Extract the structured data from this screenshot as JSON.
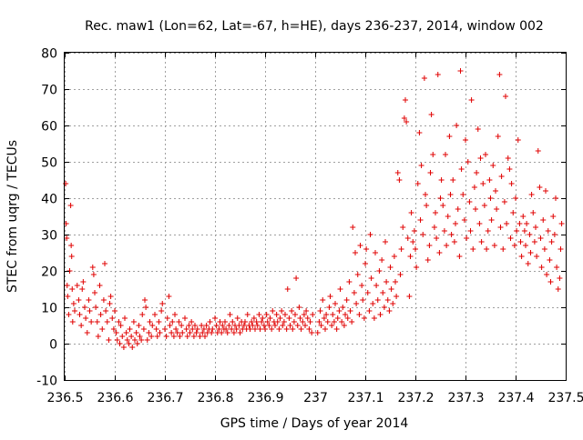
{
  "chart_data": {
    "type": "scatter",
    "title": "Rec. maw1 (Lon=62, Lat=-67, h=HE), days 236-237, 2014, window 002",
    "xlabel": "GPS time / Days of year 2014",
    "ylabel": "STEC from uqrg / TECUs",
    "xlim": [
      236.5,
      237.5
    ],
    "ylim": [
      -10,
      80
    ],
    "xticks": [
      "236.5",
      "236.6",
      "236.7",
      "236.8",
      "236.9",
      "237",
      "237.1",
      "237.2",
      "237.3",
      "237.4",
      "237.5"
    ],
    "yticks": [
      "-10",
      "0",
      "10",
      "20",
      "30",
      "40",
      "50",
      "60",
      "70",
      "80"
    ],
    "grid": true,
    "marker": "+",
    "color": "#e00000",
    "points": [
      [
        236.502,
        44
      ],
      [
        236.503,
        33
      ],
      [
        236.504,
        29
      ],
      [
        236.505,
        16
      ],
      [
        236.506,
        13
      ],
      [
        236.508,
        8
      ],
      [
        236.51,
        20
      ],
      [
        236.512,
        38
      ],
      [
        236.513,
        27
      ],
      [
        236.514,
        24
      ],
      [
        236.515,
        15
      ],
      [
        236.516,
        6
      ],
      [
        236.518,
        11
      ],
      [
        236.52,
        9
      ],
      [
        236.525,
        16
      ],
      [
        236.528,
        12
      ],
      [
        236.53,
        8
      ],
      [
        236.533,
        5
      ],
      [
        236.535,
        15
      ],
      [
        236.537,
        17
      ],
      [
        236.54,
        10
      ],
      [
        236.542,
        7
      ],
      [
        236.545,
        3
      ],
      [
        236.548,
        12
      ],
      [
        236.55,
        9
      ],
      [
        236.553,
        6
      ],
      [
        236.556,
        21
      ],
      [
        236.558,
        19
      ],
      [
        236.56,
        14
      ],
      [
        236.562,
        10
      ],
      [
        236.565,
        6
      ],
      [
        236.567,
        2
      ],
      [
        236.57,
        16
      ],
      [
        236.572,
        8
      ],
      [
        236.575,
        4
      ],
      [
        236.578,
        12
      ],
      [
        236.58,
        22
      ],
      [
        236.582,
        9
      ],
      [
        236.585,
        6
      ],
      [
        236.588,
        1
      ],
      [
        236.59,
        11
      ],
      [
        236.592,
        13
      ],
      [
        236.595,
        7
      ],
      [
        236.598,
        4
      ],
      [
        236.6,
        9
      ],
      [
        236.603,
        3
      ],
      [
        236.605,
        1
      ],
      [
        236.608,
        6
      ],
      [
        236.61,
        0
      ],
      [
        236.612,
        5
      ],
      [
        236.615,
        2
      ],
      [
        236.618,
        -1
      ],
      [
        236.62,
        7
      ],
      [
        236.623,
        3
      ],
      [
        236.625,
        1
      ],
      [
        236.628,
        0
      ],
      [
        236.63,
        4
      ],
      [
        236.633,
        2
      ],
      [
        236.635,
        -1
      ],
      [
        236.638,
        6
      ],
      [
        236.64,
        1
      ],
      [
        236.643,
        3
      ],
      [
        236.645,
        0
      ],
      [
        236.648,
        5
      ],
      [
        236.65,
        2
      ],
      [
        236.653,
        1
      ],
      [
        236.655,
        8
      ],
      [
        236.658,
        4
      ],
      [
        236.66,
        12
      ],
      [
        236.662,
        10
      ],
      [
        236.665,
        1
      ],
      [
        236.668,
        3
      ],
      [
        236.67,
        6
      ],
      [
        236.673,
        2
      ],
      [
        236.675,
        5
      ],
      [
        236.68,
        8
      ],
      [
        236.683,
        4
      ],
      [
        236.685,
        2
      ],
      [
        236.688,
        6
      ],
      [
        236.69,
        3
      ],
      [
        236.693,
        9
      ],
      [
        236.695,
        11
      ],
      [
        236.7,
        4
      ],
      [
        236.703,
        2
      ],
      [
        236.705,
        7
      ],
      [
        236.708,
        13
      ],
      [
        236.71,
        5
      ],
      [
        236.713,
        3
      ],
      [
        236.715,
        6
      ],
      [
        236.718,
        2
      ],
      [
        236.72,
        8
      ],
      [
        236.722,
        4
      ],
      [
        236.725,
        3
      ],
      [
        236.728,
        6
      ],
      [
        236.73,
        2
      ],
      [
        236.733,
        5
      ],
      [
        236.735,
        3
      ],
      [
        236.74,
        7
      ],
      [
        236.743,
        4
      ],
      [
        236.745,
        2
      ],
      [
        236.748,
        5
      ],
      [
        236.75,
        3
      ],
      [
        236.753,
        6
      ],
      [
        236.755,
        4
      ],
      [
        236.758,
        2
      ],
      [
        236.76,
        5
      ],
      [
        236.763,
        3
      ],
      [
        236.765,
        4
      ],
      [
        236.77,
        2
      ],
      [
        236.773,
        5
      ],
      [
        236.775,
        3
      ],
      [
        236.778,
        4
      ],
      [
        236.78,
        2
      ],
      [
        236.783,
        5
      ],
      [
        236.785,
        3
      ],
      [
        236.788,
        4
      ],
      [
        236.79,
        6
      ],
      [
        236.793,
        3
      ],
      [
        236.795,
        4
      ],
      [
        236.8,
        7
      ],
      [
        236.803,
        5
      ],
      [
        236.805,
        3
      ],
      [
        236.808,
        4
      ],
      [
        236.81,
        6
      ],
      [
        236.813,
        3
      ],
      [
        236.815,
        5
      ],
      [
        236.818,
        4
      ],
      [
        236.82,
        6
      ],
      [
        236.822,
        4
      ],
      [
        236.825,
        3
      ],
      [
        236.828,
        5
      ],
      [
        236.83,
        8
      ],
      [
        236.833,
        4
      ],
      [
        236.835,
        6
      ],
      [
        236.838,
        3
      ],
      [
        236.84,
        5
      ],
      [
        236.843,
        4
      ],
      [
        236.845,
        7
      ],
      [
        236.848,
        5
      ],
      [
        236.85,
        3
      ],
      [
        236.853,
        6
      ],
      [
        236.855,
        4
      ],
      [
        236.858,
        5
      ],
      [
        236.86,
        6
      ],
      [
        236.863,
        4
      ],
      [
        236.865,
        8
      ],
      [
        236.868,
        5
      ],
      [
        236.87,
        4
      ],
      [
        236.873,
        6
      ],
      [
        236.875,
        5
      ],
      [
        236.878,
        7
      ],
      [
        236.88,
        4
      ],
      [
        236.883,
        6
      ],
      [
        236.885,
        5
      ],
      [
        236.888,
        8
      ],
      [
        236.89,
        4
      ],
      [
        236.893,
        6
      ],
      [
        236.895,
        7
      ],
      [
        236.898,
        5
      ],
      [
        236.9,
        4
      ],
      [
        236.903,
        8
      ],
      [
        236.905,
        6
      ],
      [
        236.908,
        5
      ],
      [
        236.91,
        7
      ],
      [
        236.913,
        4
      ],
      [
        236.915,
        9
      ],
      [
        236.918,
        6
      ],
      [
        236.92,
        5
      ],
      [
        236.923,
        8
      ],
      [
        236.925,
        6
      ],
      [
        236.928,
        4
      ],
      [
        236.93,
        7
      ],
      [
        236.933,
        9
      ],
      [
        236.935,
        5
      ],
      [
        236.938,
        6
      ],
      [
        236.94,
        8
      ],
      [
        236.943,
        4
      ],
      [
        236.945,
        15
      ],
      [
        236.948,
        7
      ],
      [
        236.95,
        5
      ],
      [
        236.953,
        9
      ],
      [
        236.955,
        4
      ],
      [
        236.958,
        6
      ],
      [
        236.96,
        8
      ],
      [
        236.962,
        18
      ],
      [
        236.965,
        5
      ],
      [
        236.968,
        10
      ],
      [
        236.97,
        7
      ],
      [
        236.972,
        4
      ],
      [
        236.975,
        6
      ],
      [
        236.978,
        8
      ],
      [
        236.98,
        5
      ],
      [
        236.982,
        9
      ],
      [
        236.985,
        7
      ],
      [
        236.988,
        4
      ],
      [
        236.99,
        6
      ],
      [
        236.993,
        3
      ],
      [
        236.995,
        8
      ],
      [
        237.005,
        3
      ],
      [
        237.008,
        6
      ],
      [
        237.01,
        9
      ],
      [
        237.012,
        5
      ],
      [
        237.015,
        12
      ],
      [
        237.018,
        7
      ],
      [
        237.02,
        4
      ],
      [
        237.022,
        8
      ],
      [
        237.025,
        6
      ],
      [
        237.028,
        10
      ],
      [
        237.03,
        13
      ],
      [
        237.033,
        5
      ],
      [
        237.035,
        8
      ],
      [
        237.038,
        6
      ],
      [
        237.04,
        11
      ],
      [
        237.043,
        4
      ],
      [
        237.045,
        7
      ],
      [
        237.048,
        9
      ],
      [
        237.05,
        15
      ],
      [
        237.053,
        6
      ],
      [
        237.055,
        10
      ],
      [
        237.058,
        5
      ],
      [
        237.06,
        8
      ],
      [
        237.063,
        12
      ],
      [
        237.065,
        7
      ],
      [
        237.068,
        17
      ],
      [
        237.07,
        9
      ],
      [
        237.073,
        6
      ],
      [
        237.075,
        32
      ],
      [
        237.078,
        14
      ],
      [
        237.08,
        25
      ],
      [
        237.082,
        11
      ],
      [
        237.085,
        19
      ],
      [
        237.088,
        8
      ],
      [
        237.09,
        27
      ],
      [
        237.093,
        16
      ],
      [
        237.095,
        12
      ],
      [
        237.098,
        7
      ],
      [
        237.1,
        22
      ],
      [
        237.102,
        26
      ],
      [
        237.105,
        14
      ],
      [
        237.108,
        9
      ],
      [
        237.11,
        30
      ],
      [
        237.112,
        18
      ],
      [
        237.115,
        11
      ],
      [
        237.118,
        7
      ],
      [
        237.12,
        25
      ],
      [
        237.122,
        16
      ],
      [
        237.125,
        12
      ],
      [
        237.128,
        20
      ],
      [
        237.13,
        8
      ],
      [
        237.133,
        23
      ],
      [
        237.135,
        14
      ],
      [
        237.138,
        10
      ],
      [
        237.14,
        28
      ],
      [
        237.142,
        17
      ],
      [
        237.145,
        12
      ],
      [
        237.148,
        9
      ],
      [
        237.15,
        21
      ],
      [
        237.152,
        15
      ],
      [
        237.155,
        11
      ],
      [
        237.158,
        24
      ],
      [
        237.16,
        17
      ],
      [
        237.162,
        13
      ],
      [
        237.165,
        47
      ],
      [
        237.168,
        45
      ],
      [
        237.17,
        19
      ],
      [
        237.172,
        26
      ],
      [
        237.175,
        32
      ],
      [
        237.178,
        62
      ],
      [
        237.18,
        67
      ],
      [
        237.182,
        61
      ],
      [
        237.185,
        29
      ],
      [
        237.188,
        13
      ],
      [
        237.19,
        24
      ],
      [
        237.192,
        36
      ],
      [
        237.195,
        28
      ],
      [
        237.198,
        31
      ],
      [
        237.2,
        26
      ],
      [
        237.202,
        21
      ],
      [
        237.205,
        44
      ],
      [
        237.208,
        58
      ],
      [
        237.21,
        34
      ],
      [
        237.212,
        49
      ],
      [
        237.215,
        30
      ],
      [
        237.218,
        73
      ],
      [
        237.22,
        41
      ],
      [
        237.222,
        38
      ],
      [
        237.225,
        23
      ],
      [
        237.228,
        27
      ],
      [
        237.23,
        47
      ],
      [
        237.232,
        63
      ],
      [
        237.235,
        52
      ],
      [
        237.238,
        32
      ],
      [
        237.24,
        36
      ],
      [
        237.242,
        29
      ],
      [
        237.245,
        74
      ],
      [
        237.248,
        25
      ],
      [
        237.25,
        40
      ],
      [
        237.252,
        45
      ],
      [
        237.255,
        38
      ],
      [
        237.258,
        31
      ],
      [
        237.26,
        52
      ],
      [
        237.262,
        27
      ],
      [
        237.265,
        35
      ],
      [
        237.268,
        57
      ],
      [
        237.27,
        41
      ],
      [
        237.272,
        30
      ],
      [
        237.275,
        45
      ],
      [
        237.278,
        28
      ],
      [
        237.28,
        33
      ],
      [
        237.282,
        60
      ],
      [
        237.285,
        37
      ],
      [
        237.288,
        24
      ],
      [
        237.29,
        75
      ],
      [
        237.292,
        48
      ],
      [
        237.295,
        41
      ],
      [
        237.298,
        34
      ],
      [
        237.3,
        56
      ],
      [
        237.302,
        29
      ],
      [
        237.305,
        50
      ],
      [
        237.308,
        39
      ],
      [
        237.31,
        31
      ],
      [
        237.312,
        67
      ],
      [
        237.315,
        26
      ],
      [
        237.318,
        43
      ],
      [
        237.32,
        37
      ],
      [
        237.322,
        47
      ],
      [
        237.325,
        59
      ],
      [
        237.328,
        33
      ],
      [
        237.33,
        51
      ],
      [
        237.332,
        28
      ],
      [
        237.335,
        44
      ],
      [
        237.338,
        38
      ],
      [
        237.34,
        52
      ],
      [
        237.342,
        26
      ],
      [
        237.345,
        31
      ],
      [
        237.348,
        45
      ],
      [
        237.35,
        40
      ],
      [
        237.352,
        34
      ],
      [
        237.355,
        49
      ],
      [
        237.358,
        27
      ],
      [
        237.36,
        42
      ],
      [
        237.362,
        37
      ],
      [
        237.365,
        57
      ],
      [
        237.368,
        74
      ],
      [
        237.37,
        32
      ],
      [
        237.372,
        46
      ],
      [
        237.375,
        26
      ],
      [
        237.378,
        39
      ],
      [
        237.38,
        68
      ],
      [
        237.382,
        33
      ],
      [
        237.385,
        51
      ],
      [
        237.388,
        48
      ],
      [
        237.39,
        29
      ],
      [
        237.392,
        44
      ],
      [
        237.395,
        36
      ],
      [
        237.398,
        27
      ],
      [
        237.4,
        40
      ],
      [
        237.402,
        31
      ],
      [
        237.405,
        56
      ],
      [
        237.408,
        33
      ],
      [
        237.41,
        28
      ],
      [
        237.412,
        24
      ],
      [
        237.415,
        35
      ],
      [
        237.418,
        31
      ],
      [
        237.42,
        27
      ],
      [
        237.422,
        33
      ],
      [
        237.425,
        22
      ],
      [
        237.428,
        30
      ],
      [
        237.43,
        25
      ],
      [
        237.432,
        41
      ],
      [
        237.435,
        36
      ],
      [
        237.438,
        28
      ],
      [
        237.44,
        32
      ],
      [
        237.442,
        24
      ],
      [
        237.445,
        53
      ],
      [
        237.448,
        43
      ],
      [
        237.45,
        29
      ],
      [
        237.452,
        21
      ],
      [
        237.455,
        34
      ],
      [
        237.458,
        26
      ],
      [
        237.46,
        42
      ],
      [
        237.462,
        19
      ],
      [
        237.465,
        31
      ],
      [
        237.468,
        23
      ],
      [
        237.47,
        17
      ],
      [
        237.472,
        28
      ],
      [
        237.475,
        35
      ],
      [
        237.478,
        30
      ],
      [
        237.48,
        40
      ],
      [
        237.482,
        21
      ],
      [
        237.485,
        15
      ],
      [
        237.488,
        18
      ],
      [
        237.49,
        26
      ],
      [
        237.492,
        33
      ]
    ]
  }
}
